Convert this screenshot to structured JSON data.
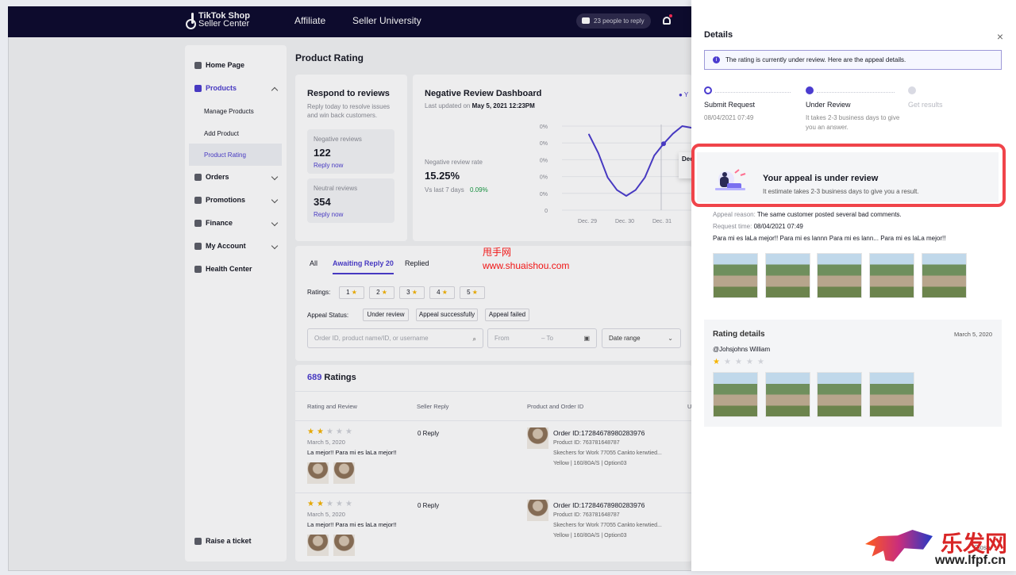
{
  "window": {
    "brand_line1": "TikTok Shop",
    "brand_line2": "Seller Center",
    "nav": [
      "Affiliate",
      "Seller University"
    ],
    "notice": "23 people to reply"
  },
  "sidebar": {
    "items": [
      {
        "label": "Home Page",
        "icon": "home-icon"
      },
      {
        "label": "Products",
        "icon": "box-icon"
      },
      {
        "label": "Manage Products"
      },
      {
        "label": "Add Product"
      },
      {
        "label": "Product Rating"
      },
      {
        "label": "Orders",
        "icon": "orders-icon"
      },
      {
        "label": "Promotions",
        "icon": "megaphone-icon"
      },
      {
        "label": "Finance",
        "icon": "wallet-icon"
      },
      {
        "label": "My Account",
        "icon": "user-icon"
      },
      {
        "label": "Health Center",
        "icon": "shield-icon"
      }
    ],
    "ticket": "Raise a ticket"
  },
  "main": {
    "title": "Product Rating",
    "respond": {
      "title": "Respond to reviews",
      "subtitle": "Reply today to resolve issues and win back customers.",
      "negative_label": "Negative reviews",
      "negative_value": "122",
      "neutral_label": "Neutral reviews",
      "neutral_value": "354",
      "reply_now": "Reply now"
    },
    "dashboard": {
      "title": "Negative Review Dashboard",
      "updated_prefix": "Last updated on ",
      "updated_time": "May 5, 2021 12:23PM",
      "rate_label": "Negative review rate",
      "rate_value": "15.25%",
      "compare_label": "Vs last 7 days",
      "compare_value": "0.09%",
      "tooltip_title": "Dec",
      "legend_prefix": "Y"
    },
    "tabs": [
      "All",
      "Awaiting Reply 20",
      "Replied"
    ],
    "ratings_label": "Ratings:",
    "rating_filters": [
      "1",
      "2",
      "3",
      "4",
      "5"
    ],
    "appeal_label": "Appeal Status:",
    "appeal_filters": [
      "Under review",
      "Appeal successfully",
      "Appeal failed"
    ],
    "search_placeholder": "Order ID, product name/ID, or username",
    "from_placeholder": "From",
    "to_placeholder": "To",
    "date_range": "Date range",
    "ratings_count": "689",
    "ratings_word": "Ratings",
    "columns": [
      "Rating and Review",
      "Seller Reply",
      "Product and Order ID",
      "U"
    ],
    "rows": [
      {
        "date": "March 5, 2020",
        "review": "La mejor!! Para mi es laLa mejor!!",
        "reply": "0 Reply",
        "order": "Order ID:17284678980283976",
        "product_id": "Product ID: 763781648787",
        "product_name": "Skechers for Work 77055 Cankto kerwtied...",
        "sku": "Yellow  |  160/80A/S  |  Option03"
      },
      {
        "date": "March 5, 2020",
        "review": "La mejor!! Para mi es laLa mejor!!",
        "reply": "0 Reply",
        "order": "Order ID:17284678980283976",
        "product_id": "Product ID: 763781648787",
        "product_name": "Skechers for Work 77055 Cankto kerwtied...",
        "sku": "Yellow  |  160/80A/S  |  Option03"
      }
    ]
  },
  "chart_data": {
    "type": "line",
    "categories": [
      "Dec. 29",
      "Dec. 30",
      "Dec. 31"
    ],
    "y_ticks": [
      "100%",
      "80%",
      "60%",
      "40%",
      "20%",
      "0"
    ],
    "ylim": [
      0,
      100
    ],
    "series": [
      {
        "color": "#4b3ccf",
        "x": [
          0,
          0.25,
          0.5,
          0.75,
          1,
          1.25,
          1.5,
          1.75,
          2,
          2.25,
          2.5,
          2.75
        ],
        "values": [
          90,
          68,
          39,
          24,
          17,
          24,
          39,
          65,
          79,
          91,
          100,
          98
        ]
      }
    ]
  },
  "details": {
    "title": "Details",
    "info": "The rating is currently under review. Here are the appeal details.",
    "steps": [
      {
        "title": "Submit Request",
        "sub": "08/04/2021 07:49"
      },
      {
        "title": "Under Review",
        "sub": "It takes 2-3 business days to give you an answer."
      },
      {
        "title": "Get results",
        "sub": ""
      }
    ],
    "review_title": "Your appeal is under review",
    "review_subtitle": "It estimate takes 2-3 business days to give you a result.",
    "appeal_reason_label": "Appeal reason:",
    "appeal_reason": "The same customer posted several bad comments.",
    "request_time_label": "Request time:",
    "request_time": "08/04/2021 07:49",
    "appeal_text": "Para mi es laLa mejor!! Para mi es lannn Para mi es lann... Para mi es laLa mejor!!",
    "rating_title": "Rating details",
    "rating_date": "March 5, 2020",
    "user": "@Johsjohns William",
    "rating_stars": 1,
    "close_label": "Close"
  },
  "watermarks": {
    "cn": "甩手网",
    "url": "www.shuaishou.com",
    "logo_brand": "乐发网",
    "logo_site": "www.lfpf.cn"
  }
}
